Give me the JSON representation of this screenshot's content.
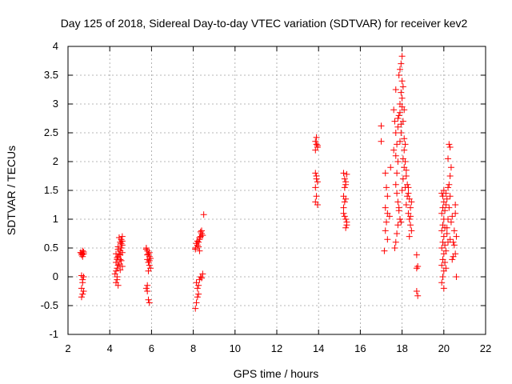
{
  "chart_data": {
    "type": "scatter",
    "title": "Day 125 of 2018, Sidereal Day-to-day VTEC variation (SDTVAR) for receiver kev2",
    "xlabel": "GPS time / hours",
    "ylabel": "SDTVAR / TECUs",
    "xlim": [
      2,
      22
    ],
    "ylim": [
      -1,
      4
    ],
    "xticks": [
      2,
      4,
      6,
      8,
      10,
      12,
      14,
      16,
      18,
      20,
      22
    ],
    "yticks": [
      -1,
      -0.5,
      0,
      0.5,
      1,
      1.5,
      2,
      2.5,
      3,
      3.5,
      4
    ],
    "grid": true,
    "marker": "+",
    "color": "#ff0000",
    "series": [
      {
        "name": "SDTVAR",
        "points": [
          [
            2.6,
            0.42
          ],
          [
            2.65,
            0.38
          ],
          [
            2.7,
            0.45
          ],
          [
            2.75,
            0.4
          ],
          [
            2.7,
            0.35
          ],
          [
            2.65,
            0.41
          ],
          [
            2.75,
            0.43
          ],
          [
            2.7,
            0.39
          ],
          [
            2.65,
            0.02
          ],
          [
            2.7,
            -0.05
          ],
          [
            2.7,
            -0.1
          ],
          [
            2.65,
            -0.2
          ],
          [
            2.75,
            -0.25
          ],
          [
            2.7,
            -0.3
          ],
          [
            2.65,
            -0.35
          ],
          [
            2.75,
            0.0
          ],
          [
            4.3,
            -0.1
          ],
          [
            4.35,
            -0.05
          ],
          [
            4.4,
            -0.15
          ],
          [
            4.25,
            0.05
          ],
          [
            4.3,
            0.1
          ],
          [
            4.35,
            0.15
          ],
          [
            4.4,
            0.2
          ],
          [
            4.3,
            0.25
          ],
          [
            4.35,
            0.3
          ],
          [
            4.4,
            0.35
          ],
          [
            4.45,
            0.4
          ],
          [
            4.5,
            0.45
          ],
          [
            4.55,
            0.5
          ],
          [
            4.6,
            0.55
          ],
          [
            4.5,
            0.6
          ],
          [
            4.55,
            0.65
          ],
          [
            4.6,
            0.7
          ],
          [
            4.45,
            0.68
          ],
          [
            4.4,
            0.52
          ],
          [
            4.5,
            0.38
          ],
          [
            4.6,
            0.42
          ],
          [
            4.55,
            0.28
          ],
          [
            4.45,
            0.22
          ],
          [
            4.35,
            0.33
          ],
          [
            4.5,
            0.12
          ],
          [
            4.6,
            0.18
          ],
          [
            4.4,
            0.48
          ],
          [
            4.3,
            0.4
          ],
          [
            4.55,
            0.58
          ],
          [
            4.6,
            0.62
          ],
          [
            4.35,
            0.0
          ],
          [
            4.5,
            0.3
          ],
          [
            5.75,
            0.5
          ],
          [
            5.8,
            0.45
          ],
          [
            5.85,
            0.4
          ],
          [
            5.9,
            0.35
          ],
          [
            5.8,
            0.3
          ],
          [
            5.85,
            0.25
          ],
          [
            5.9,
            0.2
          ],
          [
            5.95,
            0.15
          ],
          [
            5.8,
            0.38
          ],
          [
            5.9,
            0.42
          ],
          [
            5.75,
            0.48
          ],
          [
            5.95,
            0.32
          ],
          [
            5.85,
            0.1
          ],
          [
            5.9,
            0.28
          ],
          [
            5.8,
            -0.15
          ],
          [
            5.75,
            -0.2
          ],
          [
            5.8,
            -0.25
          ],
          [
            5.85,
            -0.4
          ],
          [
            5.9,
            -0.45
          ],
          [
            8.1,
            0.5
          ],
          [
            8.2,
            0.55
          ],
          [
            8.25,
            0.6
          ],
          [
            8.3,
            0.65
          ],
          [
            8.35,
            0.7
          ],
          [
            8.4,
            0.75
          ],
          [
            8.45,
            0.72
          ],
          [
            8.3,
            0.68
          ],
          [
            8.2,
            0.62
          ],
          [
            8.15,
            0.58
          ],
          [
            8.35,
            0.78
          ],
          [
            8.4,
            0.8
          ],
          [
            8.25,
            0.52
          ],
          [
            8.1,
            0.48
          ],
          [
            8.5,
            1.08
          ],
          [
            8.3,
            0.45
          ],
          [
            8.15,
            -0.1
          ],
          [
            8.2,
            -0.2
          ],
          [
            8.25,
            -0.3
          ],
          [
            8.15,
            -0.45
          ],
          [
            8.1,
            -0.55
          ],
          [
            8.2,
            -0.35
          ],
          [
            8.3,
            -0.05
          ],
          [
            8.35,
            0.0
          ],
          [
            8.4,
            -0.02
          ],
          [
            8.45,
            0.05
          ],
          [
            8.25,
            -0.15
          ],
          [
            13.85,
            2.2
          ],
          [
            13.9,
            2.3
          ],
          [
            13.95,
            2.25
          ],
          [
            13.85,
            2.35
          ],
          [
            13.9,
            2.42
          ],
          [
            13.95,
            2.28
          ],
          [
            13.85,
            1.8
          ],
          [
            13.9,
            1.7
          ],
          [
            13.95,
            1.65
          ],
          [
            13.85,
            1.55
          ],
          [
            13.9,
            1.4
          ],
          [
            13.85,
            1.3
          ],
          [
            13.95,
            1.25
          ],
          [
            13.9,
            1.75
          ],
          [
            15.2,
            1.8
          ],
          [
            15.25,
            1.7
          ],
          [
            15.3,
            1.6
          ],
          [
            15.25,
            1.55
          ],
          [
            15.2,
            1.4
          ],
          [
            15.3,
            1.35
          ],
          [
            15.25,
            1.3
          ],
          [
            15.2,
            1.1
          ],
          [
            15.25,
            1.05
          ],
          [
            15.3,
            1.0
          ],
          [
            15.35,
            0.95
          ],
          [
            15.3,
            0.85
          ],
          [
            15.35,
            0.9
          ],
          [
            15.2,
            1.2
          ],
          [
            15.3,
            1.65
          ],
          [
            15.35,
            1.78
          ],
          [
            17.0,
            2.62
          ],
          [
            17.0,
            2.35
          ],
          [
            17.2,
            1.8
          ],
          [
            17.25,
            1.55
          ],
          [
            17.3,
            1.4
          ],
          [
            17.2,
            1.2
          ],
          [
            17.3,
            1.1
          ],
          [
            17.25,
            0.95
          ],
          [
            17.2,
            0.8
          ],
          [
            17.3,
            0.65
          ],
          [
            17.15,
            0.45
          ],
          [
            17.4,
            1.05
          ],
          [
            17.45,
            1.9
          ],
          [
            17.6,
            2.9
          ],
          [
            17.65,
            2.7
          ],
          [
            17.7,
            2.5
          ],
          [
            17.75,
            2.3
          ],
          [
            17.6,
            2.2
          ],
          [
            17.7,
            2.1
          ],
          [
            17.8,
            2.6
          ],
          [
            17.85,
            2.8
          ],
          [
            17.9,
            3.0
          ],
          [
            17.95,
            3.2
          ],
          [
            18.0,
            3.4
          ],
          [
            17.9,
            3.6
          ],
          [
            18.0,
            3.83
          ],
          [
            17.95,
            3.7
          ],
          [
            17.85,
            3.5
          ],
          [
            18.05,
            3.3
          ],
          [
            18.0,
            3.1
          ],
          [
            18.1,
            2.9
          ],
          [
            18.05,
            2.7
          ],
          [
            17.95,
            2.5
          ],
          [
            18.1,
            2.4
          ],
          [
            18.15,
            2.3
          ],
          [
            17.8,
            2.0
          ],
          [
            17.75,
            1.8
          ],
          [
            17.7,
            1.6
          ],
          [
            17.75,
            1.45
          ],
          [
            17.8,
            1.3
          ],
          [
            17.85,
            1.2
          ],
          [
            17.9,
            1.0
          ],
          [
            17.8,
            0.9
          ],
          [
            17.75,
            0.75
          ],
          [
            17.7,
            0.6
          ],
          [
            17.65,
            0.5
          ],
          [
            18.0,
            1.5
          ],
          [
            18.05,
            1.7
          ],
          [
            18.1,
            1.9
          ],
          [
            18.15,
            2.0
          ],
          [
            18.2,
            1.85
          ],
          [
            18.25,
            1.6
          ],
          [
            18.3,
            1.45
          ],
          [
            18.35,
            1.35
          ],
          [
            18.4,
            1.2
          ],
          [
            18.3,
            1.1
          ],
          [
            18.35,
            1.0
          ],
          [
            18.4,
            0.9
          ],
          [
            18.45,
            0.8
          ],
          [
            18.35,
            0.7
          ],
          [
            18.3,
            1.55
          ],
          [
            18.25,
            1.4
          ],
          [
            18.2,
            1.25
          ],
          [
            17.95,
            2.65
          ],
          [
            17.9,
            2.35
          ],
          [
            17.85,
            1.15
          ],
          [
            17.95,
            0.95
          ],
          [
            18.1,
            2.2
          ],
          [
            17.8,
            2.75
          ],
          [
            17.7,
            3.25
          ],
          [
            18.0,
            2.95
          ],
          [
            18.2,
            1.75
          ],
          [
            18.05,
            2.05
          ],
          [
            17.9,
            2.85
          ],
          [
            18.15,
            1.55
          ],
          [
            18.4,
            1.05
          ],
          [
            18.45,
            1.3
          ],
          [
            18.7,
            0.38
          ],
          [
            18.7,
            0.15
          ],
          [
            18.75,
            0.18
          ],
          [
            18.7,
            -0.25
          ],
          [
            18.75,
            -0.33
          ],
          [
            19.9,
            1.45
          ],
          [
            19.95,
            1.4
          ],
          [
            20.0,
            1.3
          ],
          [
            19.95,
            1.2
          ],
          [
            19.9,
            1.1
          ],
          [
            20.0,
            1.0
          ],
          [
            19.95,
            0.9
          ],
          [
            19.9,
            0.8
          ],
          [
            20.0,
            0.7
          ],
          [
            19.95,
            0.6
          ],
          [
            19.9,
            0.5
          ],
          [
            20.0,
            0.4
          ],
          [
            19.95,
            0.3
          ],
          [
            19.9,
            0.2
          ],
          [
            20.0,
            0.1
          ],
          [
            19.95,
            0.0
          ],
          [
            19.9,
            -0.1
          ],
          [
            20.0,
            -0.2
          ],
          [
            20.05,
            0.55
          ],
          [
            20.1,
            0.45
          ],
          [
            20.15,
            0.85
          ],
          [
            20.2,
            1.0
          ],
          [
            20.25,
            1.2
          ],
          [
            20.3,
            1.4
          ],
          [
            20.25,
            1.6
          ],
          [
            20.3,
            1.75
          ],
          [
            20.2,
            1.55
          ],
          [
            20.15,
            1.35
          ],
          [
            20.1,
            1.25
          ],
          [
            20.05,
            1.15
          ],
          [
            20.25,
            2.3
          ],
          [
            20.3,
            2.25
          ],
          [
            20.35,
            1.9
          ],
          [
            20.2,
            2.05
          ],
          [
            20.4,
            0.3
          ],
          [
            20.45,
            0.6
          ],
          [
            20.5,
            0.8
          ],
          [
            20.55,
            1.1
          ],
          [
            20.6,
            0.7
          ],
          [
            20.55,
            0.4
          ],
          [
            20.6,
            0.0
          ],
          [
            20.45,
            0.35
          ],
          [
            20.5,
            0.55
          ],
          [
            20.3,
            0.65
          ],
          [
            20.35,
            0.95
          ],
          [
            20.05,
            0.25
          ],
          [
            20.1,
            0.15
          ],
          [
            20.0,
            1.5
          ],
          [
            20.1,
            1.45
          ],
          [
            20.15,
            0.75
          ],
          [
            20.2,
            0.6
          ],
          [
            20.05,
            0.85
          ],
          [
            20.55,
            1.25
          ],
          [
            20.4,
            1.05
          ]
        ]
      }
    ]
  }
}
